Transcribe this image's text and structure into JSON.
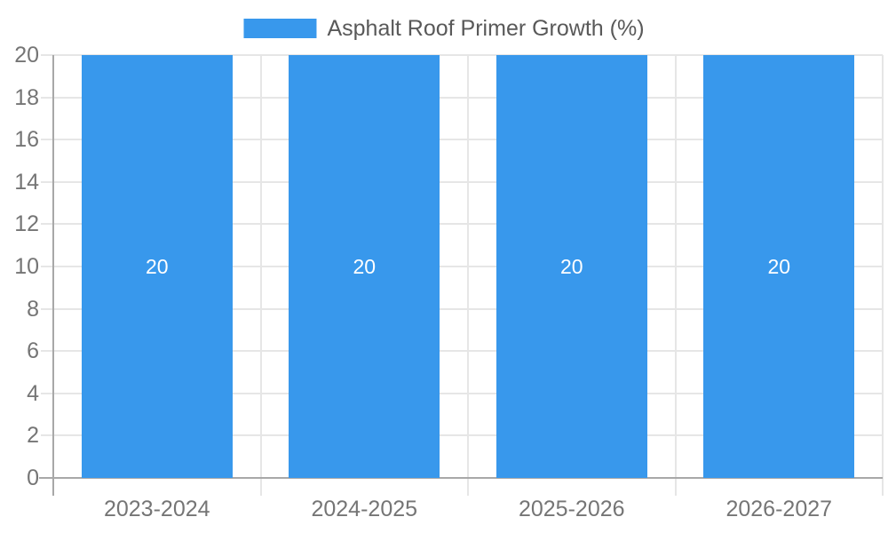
{
  "chart_data": {
    "type": "bar",
    "title": "",
    "categories": [
      "2023-2024",
      "2024-2025",
      "2025-2026",
      "2026-2027"
    ],
    "series": [
      {
        "name": "Asphalt Roof Primer Growth (%)",
        "values": [
          20,
          20,
          20,
          20
        ]
      }
    ],
    "bar_value_labels": [
      "20",
      "20",
      "20",
      "20"
    ],
    "ylim": [
      0,
      20
    ],
    "ytick_step": 2,
    "yticks": [
      0,
      2,
      4,
      6,
      8,
      10,
      12,
      14,
      16,
      18,
      20
    ],
    "legend_position": "top-center",
    "grid": true,
    "colors": {
      "bar": "#3898ec",
      "grid": "#e6e6e6",
      "axis": "#a8a8a8",
      "tick_text": "#757575",
      "legend_text": "#595959",
      "bar_label_text": "#ffffff",
      "background": "#ffffff"
    }
  }
}
